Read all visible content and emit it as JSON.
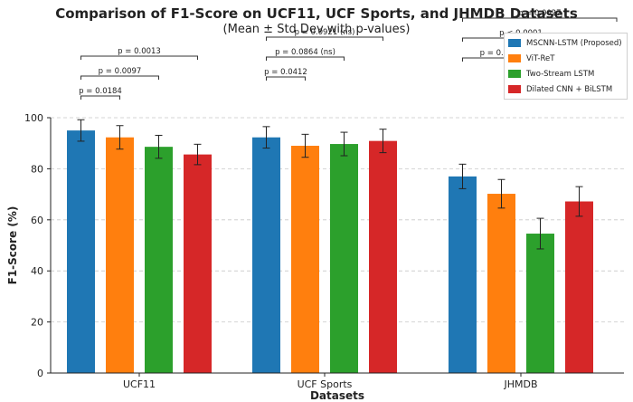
{
  "chart_data": {
    "type": "bar",
    "title": "Comparison of F1-Score on UCF11, UCF Sports, and JHMDB Datasets",
    "subtitle": "(Mean ± Std Dev with p-values)",
    "xlabel": "Datasets",
    "ylabel": "F1-Score (%)",
    "ylim": [
      0,
      100
    ],
    "yticks": [
      "0",
      "20",
      "40",
      "60",
      "80",
      "100"
    ],
    "grid": true,
    "legend_position": "top-right",
    "categories": [
      "UCF11",
      "UCF Sports",
      "JHMDB"
    ],
    "series": [
      {
        "name": "MSCNN-LSTM (Proposed)",
        "color": "#1f77b4",
        "values": [
          95,
          92.3,
          77
        ],
        "errors": [
          4.2,
          4.2,
          4.8
        ]
      },
      {
        "name": "ViT-ReT",
        "color": "#ff7f0e",
        "values": [
          92.3,
          89,
          70.2
        ],
        "errors": [
          4.6,
          4.5,
          5.6
        ]
      },
      {
        "name": "Two-Stream LSTM",
        "color": "#2ca02c",
        "values": [
          88.6,
          89.7,
          54.6
        ],
        "errors": [
          4.5,
          4.6,
          6.0
        ]
      },
      {
        "name": "Dilated CNN + BiLSTM",
        "color": "#d62728",
        "values": [
          85.6,
          90.9,
          67.2
        ],
        "errors": [
          4.0,
          4.6,
          5.8
        ]
      }
    ],
    "annotations": [
      {
        "category": "UCF11",
        "from": 0,
        "to": 1,
        "label": "p = 0.0184",
        "level": 0
      },
      {
        "category": "UCF11",
        "from": 0,
        "to": 2,
        "label": "p = 0.0097",
        "level": 1
      },
      {
        "category": "UCF11",
        "from": 0,
        "to": 3,
        "label": "p = 0.0013",
        "level": 2
      },
      {
        "category": "UCF Sports",
        "from": 0,
        "to": 1,
        "label": "p = 0.0412",
        "level": 0
      },
      {
        "category": "UCF Sports",
        "from": 0,
        "to": 2,
        "label": "p = 0.0864 (ns)",
        "level": 1
      },
      {
        "category": "UCF Sports",
        "from": 0,
        "to": 3,
        "label": "p = 0.0921 (ns)",
        "level": 2
      },
      {
        "category": "JHMDB",
        "from": 0,
        "to": 2,
        "label": "p = 0.0145",
        "level": 0
      },
      {
        "category": "JHMDB",
        "from": 0,
        "to": 3,
        "label": "p < 0.0001",
        "level": 1
      },
      {
        "category": "JHMDB",
        "from": 0,
        "to": 4,
        "label": "p = 0.0027",
        "level": 2
      }
    ]
  }
}
